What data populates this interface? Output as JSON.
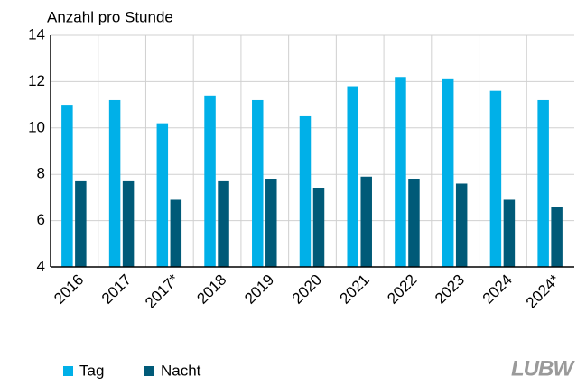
{
  "chart_data": {
    "type": "bar",
    "y_axis_label": "Anzahl pro Stunde",
    "categories": [
      "2016",
      "2017",
      "2017*",
      "2018",
      "2019",
      "2020",
      "2021",
      "2022",
      "2023",
      "2024",
      "2024*"
    ],
    "series": [
      {
        "name": "Tag",
        "color": "#00b0e8",
        "values": [
          11.0,
          11.2,
          10.2,
          11.4,
          11.2,
          10.5,
          11.8,
          12.2,
          12.1,
          11.6,
          11.2
        ]
      },
      {
        "name": "Nacht",
        "color": "#005a78",
        "values": [
          7.7,
          7.7,
          6.9,
          7.7,
          7.8,
          7.4,
          7.9,
          7.8,
          7.6,
          6.9,
          6.6
        ]
      }
    ],
    "ylim": [
      4,
      14
    ],
    "yticks": [
      4,
      6,
      8,
      10,
      12,
      14
    ],
    "grid": true,
    "logo": "LUBW"
  }
}
